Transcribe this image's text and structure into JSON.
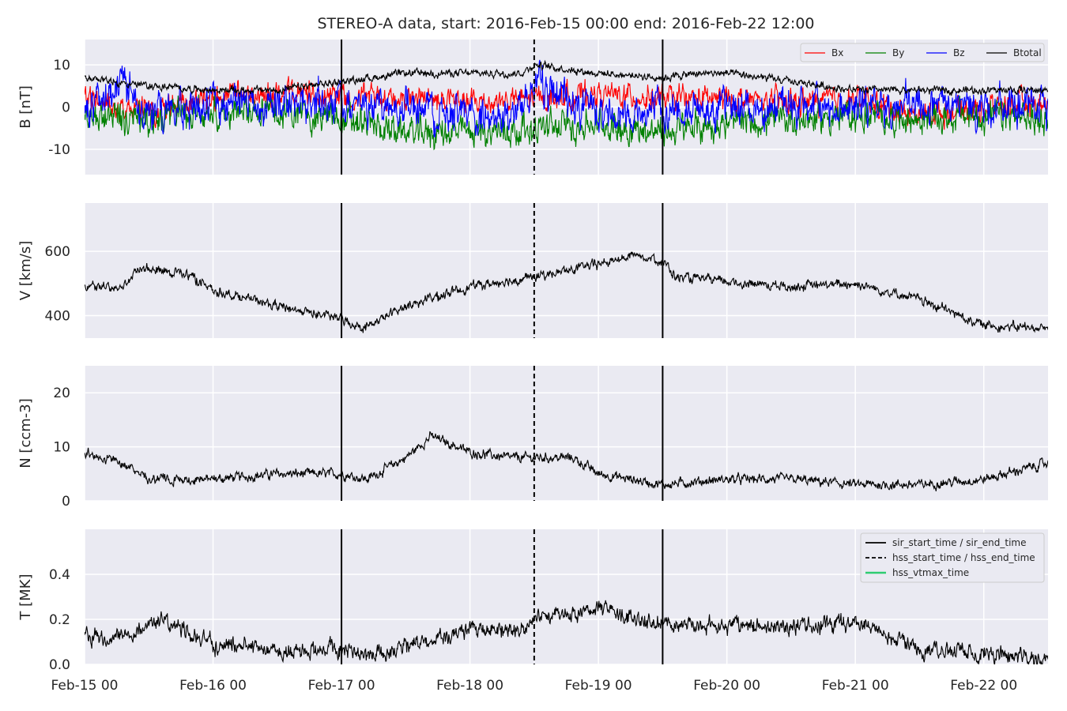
{
  "figure": {
    "title": "STEREO-A data, start: 2016-Feb-15 00:00  end: 2016-Feb-22 12:00",
    "background": "#ffffff",
    "panel_background": "#eaeaf2",
    "grid_color": "#ffffff"
  },
  "chart_data": [
    {
      "type": "line",
      "id": "b-panel",
      "ylabel": "B [nT]",
      "ylim": [
        -16,
        16
      ],
      "yticks": [
        -10,
        0,
        10
      ],
      "xlim_days": [
        0,
        7.5
      ],
      "xtick_days": [
        0,
        1,
        2,
        3,
        4,
        5,
        6,
        7
      ],
      "xtick_labels": [
        "Feb-15 00",
        "Feb-16 00",
        "Feb-17 00",
        "Feb-18 00",
        "Feb-19 00",
        "Feb-20 00",
        "Feb-21 00",
        "Feb-22 00"
      ],
      "grid": true,
      "legend": "top-right",
      "series": [
        {
          "name": "Bx",
          "color": "#ff0000",
          "noise": 2.0,
          "points": [
            [
              0,
              2
            ],
            [
              0.5,
              -1
            ],
            [
              1,
              2
            ],
            [
              1.5,
              3
            ],
            [
              2,
              3
            ],
            [
              2.5,
              2
            ],
            [
              3,
              1
            ],
            [
              3.5,
              2
            ],
            [
              4,
              3
            ],
            [
              4.5,
              2
            ],
            [
              5,
              2
            ],
            [
              5.5,
              1
            ],
            [
              6,
              2
            ],
            [
              6.5,
              -2
            ],
            [
              7,
              0
            ],
            [
              7.5,
              1
            ]
          ]
        },
        {
          "name": "By",
          "color": "#008000",
          "noise": 2.5,
          "points": [
            [
              0,
              -3
            ],
            [
              0.5,
              -3
            ],
            [
              1,
              -1
            ],
            [
              1.5,
              -1
            ],
            [
              2,
              -3
            ],
            [
              2.5,
              -6
            ],
            [
              3,
              -6
            ],
            [
              3.5,
              -5
            ],
            [
              4,
              -4
            ],
            [
              4.5,
              -6
            ],
            [
              5,
              -4
            ],
            [
              5.5,
              -3
            ],
            [
              6,
              -2
            ],
            [
              6.5,
              -3
            ],
            [
              7,
              -2
            ],
            [
              7.5,
              -3
            ]
          ]
        },
        {
          "name": "Bz",
          "color": "#0000ff",
          "noise": 3.0,
          "points": [
            [
              0,
              -1
            ],
            [
              0.3,
              5
            ],
            [
              0.5,
              -2
            ],
            [
              1,
              1
            ],
            [
              1.5,
              1
            ],
            [
              2,
              0
            ],
            [
              2.5,
              0
            ],
            [
              3,
              -2
            ],
            [
              3.3,
              -3
            ],
            [
              3.5,
              5
            ],
            [
              4,
              -1
            ],
            [
              4.5,
              -1
            ],
            [
              5,
              0
            ],
            [
              5.5,
              0
            ],
            [
              6,
              0
            ],
            [
              6.5,
              0
            ],
            [
              7,
              0
            ],
            [
              7.5,
              0
            ]
          ]
        },
        {
          "name": "Btotal",
          "color": "#000000",
          "noise": 0.6,
          "points": [
            [
              0,
              7
            ],
            [
              0.5,
              5
            ],
            [
              1,
              4
            ],
            [
              1.5,
              4
            ],
            [
              2,
              6
            ],
            [
              2.5,
              8
            ],
            [
              3,
              8
            ],
            [
              3.4,
              8
            ],
            [
              3.5,
              10
            ],
            [
              4,
              8
            ],
            [
              4.5,
              7
            ],
            [
              4.8,
              8
            ],
            [
              5,
              8
            ],
            [
              5.5,
              6
            ],
            [
              6,
              4
            ],
            [
              6.5,
              4
            ],
            [
              7,
              4
            ],
            [
              7.5,
              4
            ]
          ]
        }
      ]
    },
    {
      "type": "line",
      "id": "v-panel",
      "ylabel": "V [km/s]",
      "ylim": [
        330,
        750
      ],
      "yticks": [
        400,
        600
      ],
      "xlim_days": [
        0,
        7.5
      ],
      "xtick_days": [
        0,
        1,
        2,
        3,
        4,
        5,
        6,
        7
      ],
      "grid": true,
      "series": [
        {
          "name": "",
          "color": "#000000",
          "noise": 10,
          "points": [
            [
              0,
              490
            ],
            [
              0.3,
              490
            ],
            [
              0.45,
              550
            ],
            [
              0.8,
              530
            ],
            [
              1,
              480
            ],
            [
              1.5,
              430
            ],
            [
              2,
              390
            ],
            [
              2.1,
              370
            ],
            [
              2.2,
              365
            ],
            [
              2.5,
              430
            ],
            [
              3,
              490
            ],
            [
              3.5,
              520
            ],
            [
              4,
              560
            ],
            [
              4.3,
              590
            ],
            [
              4.5,
              570
            ],
            [
              4.6,
              520
            ],
            [
              5,
              505
            ],
            [
              5.5,
              490
            ],
            [
              6,
              500
            ],
            [
              6.5,
              450
            ],
            [
              7,
              370
            ],
            [
              7.5,
              360
            ]
          ]
        }
      ]
    },
    {
      "type": "line",
      "id": "n-panel",
      "ylabel": "N [ccm-3]",
      "ylim": [
        0,
        25
      ],
      "yticks": [
        0,
        10,
        20
      ],
      "xlim_days": [
        0,
        7.5
      ],
      "xtick_days": [
        0,
        1,
        2,
        3,
        4,
        5,
        6,
        7
      ],
      "grid": true,
      "series": [
        {
          "name": "",
          "color": "#000000",
          "noise": 0.6,
          "points": [
            [
              0,
              9
            ],
            [
              0.3,
              7
            ],
            [
              0.5,
              4
            ],
            [
              1,
              4
            ],
            [
              1.5,
              5
            ],
            [
              1.8,
              5
            ],
            [
              2,
              5
            ],
            [
              2.2,
              4
            ],
            [
              2.5,
              8
            ],
            [
              2.7,
              12
            ],
            [
              3,
              9
            ],
            [
              3.3,
              8
            ],
            [
              3.6,
              8
            ],
            [
              3.8,
              8
            ],
            [
              4,
              5
            ],
            [
              4.5,
              3
            ],
            [
              5,
              4
            ],
            [
              5.5,
              4
            ],
            [
              6,
              3
            ],
            [
              6.5,
              3
            ],
            [
              7,
              4
            ],
            [
              7.5,
              7
            ]
          ]
        }
      ]
    },
    {
      "type": "line",
      "id": "t-panel",
      "ylabel": "T [MK]",
      "ylim": [
        0,
        0.6
      ],
      "yticks": [
        0.0,
        0.2,
        0.4
      ],
      "xlim_days": [
        0,
        7.5
      ],
      "xtick_days": [
        0,
        1,
        2,
        3,
        4,
        5,
        6,
        7
      ],
      "xtick_labels": [
        "Feb-15 00",
        "Feb-16 00",
        "Feb-17 00",
        "Feb-18 00",
        "Feb-19 00",
        "Feb-20 00",
        "Feb-21 00",
        "Feb-22 00"
      ],
      "grid": true,
      "legend": "top-right",
      "series": [
        {
          "name": "",
          "color": "#000000",
          "noise": 0.025,
          "points": [
            [
              0,
              0.13
            ],
            [
              0.3,
              0.12
            ],
            [
              0.6,
              0.2
            ],
            [
              0.8,
              0.15
            ],
            [
              1,
              0.09
            ],
            [
              1.5,
              0.06
            ],
            [
              2,
              0.07
            ],
            [
              2.2,
              0.04
            ],
            [
              2.5,
              0.08
            ],
            [
              3,
              0.15
            ],
            [
              3.3,
              0.15
            ],
            [
              3.5,
              0.2
            ],
            [
              4,
              0.25
            ],
            [
              4.3,
              0.2
            ],
            [
              4.6,
              0.18
            ],
            [
              5,
              0.17
            ],
            [
              5.5,
              0.17
            ],
            [
              6,
              0.18
            ],
            [
              6.3,
              0.12
            ],
            [
              6.5,
              0.07
            ],
            [
              7,
              0.05
            ],
            [
              7.5,
              0.03
            ]
          ]
        }
      ]
    }
  ],
  "event_lines": [
    {
      "day": 2.0,
      "style": "solid"
    },
    {
      "day": 3.5,
      "style": "dashed"
    },
    {
      "day": 4.5,
      "style": "solid"
    }
  ],
  "event_legend": [
    {
      "label": "sir_start_time / sir_end_time",
      "style": "solid",
      "color": "#000000"
    },
    {
      "label": "hss_start_time / hss_end_time",
      "style": "dashed",
      "color": "#000000"
    },
    {
      "label": "hss_vtmax_time",
      "style": "solid",
      "color": "#2ecc71"
    }
  ]
}
